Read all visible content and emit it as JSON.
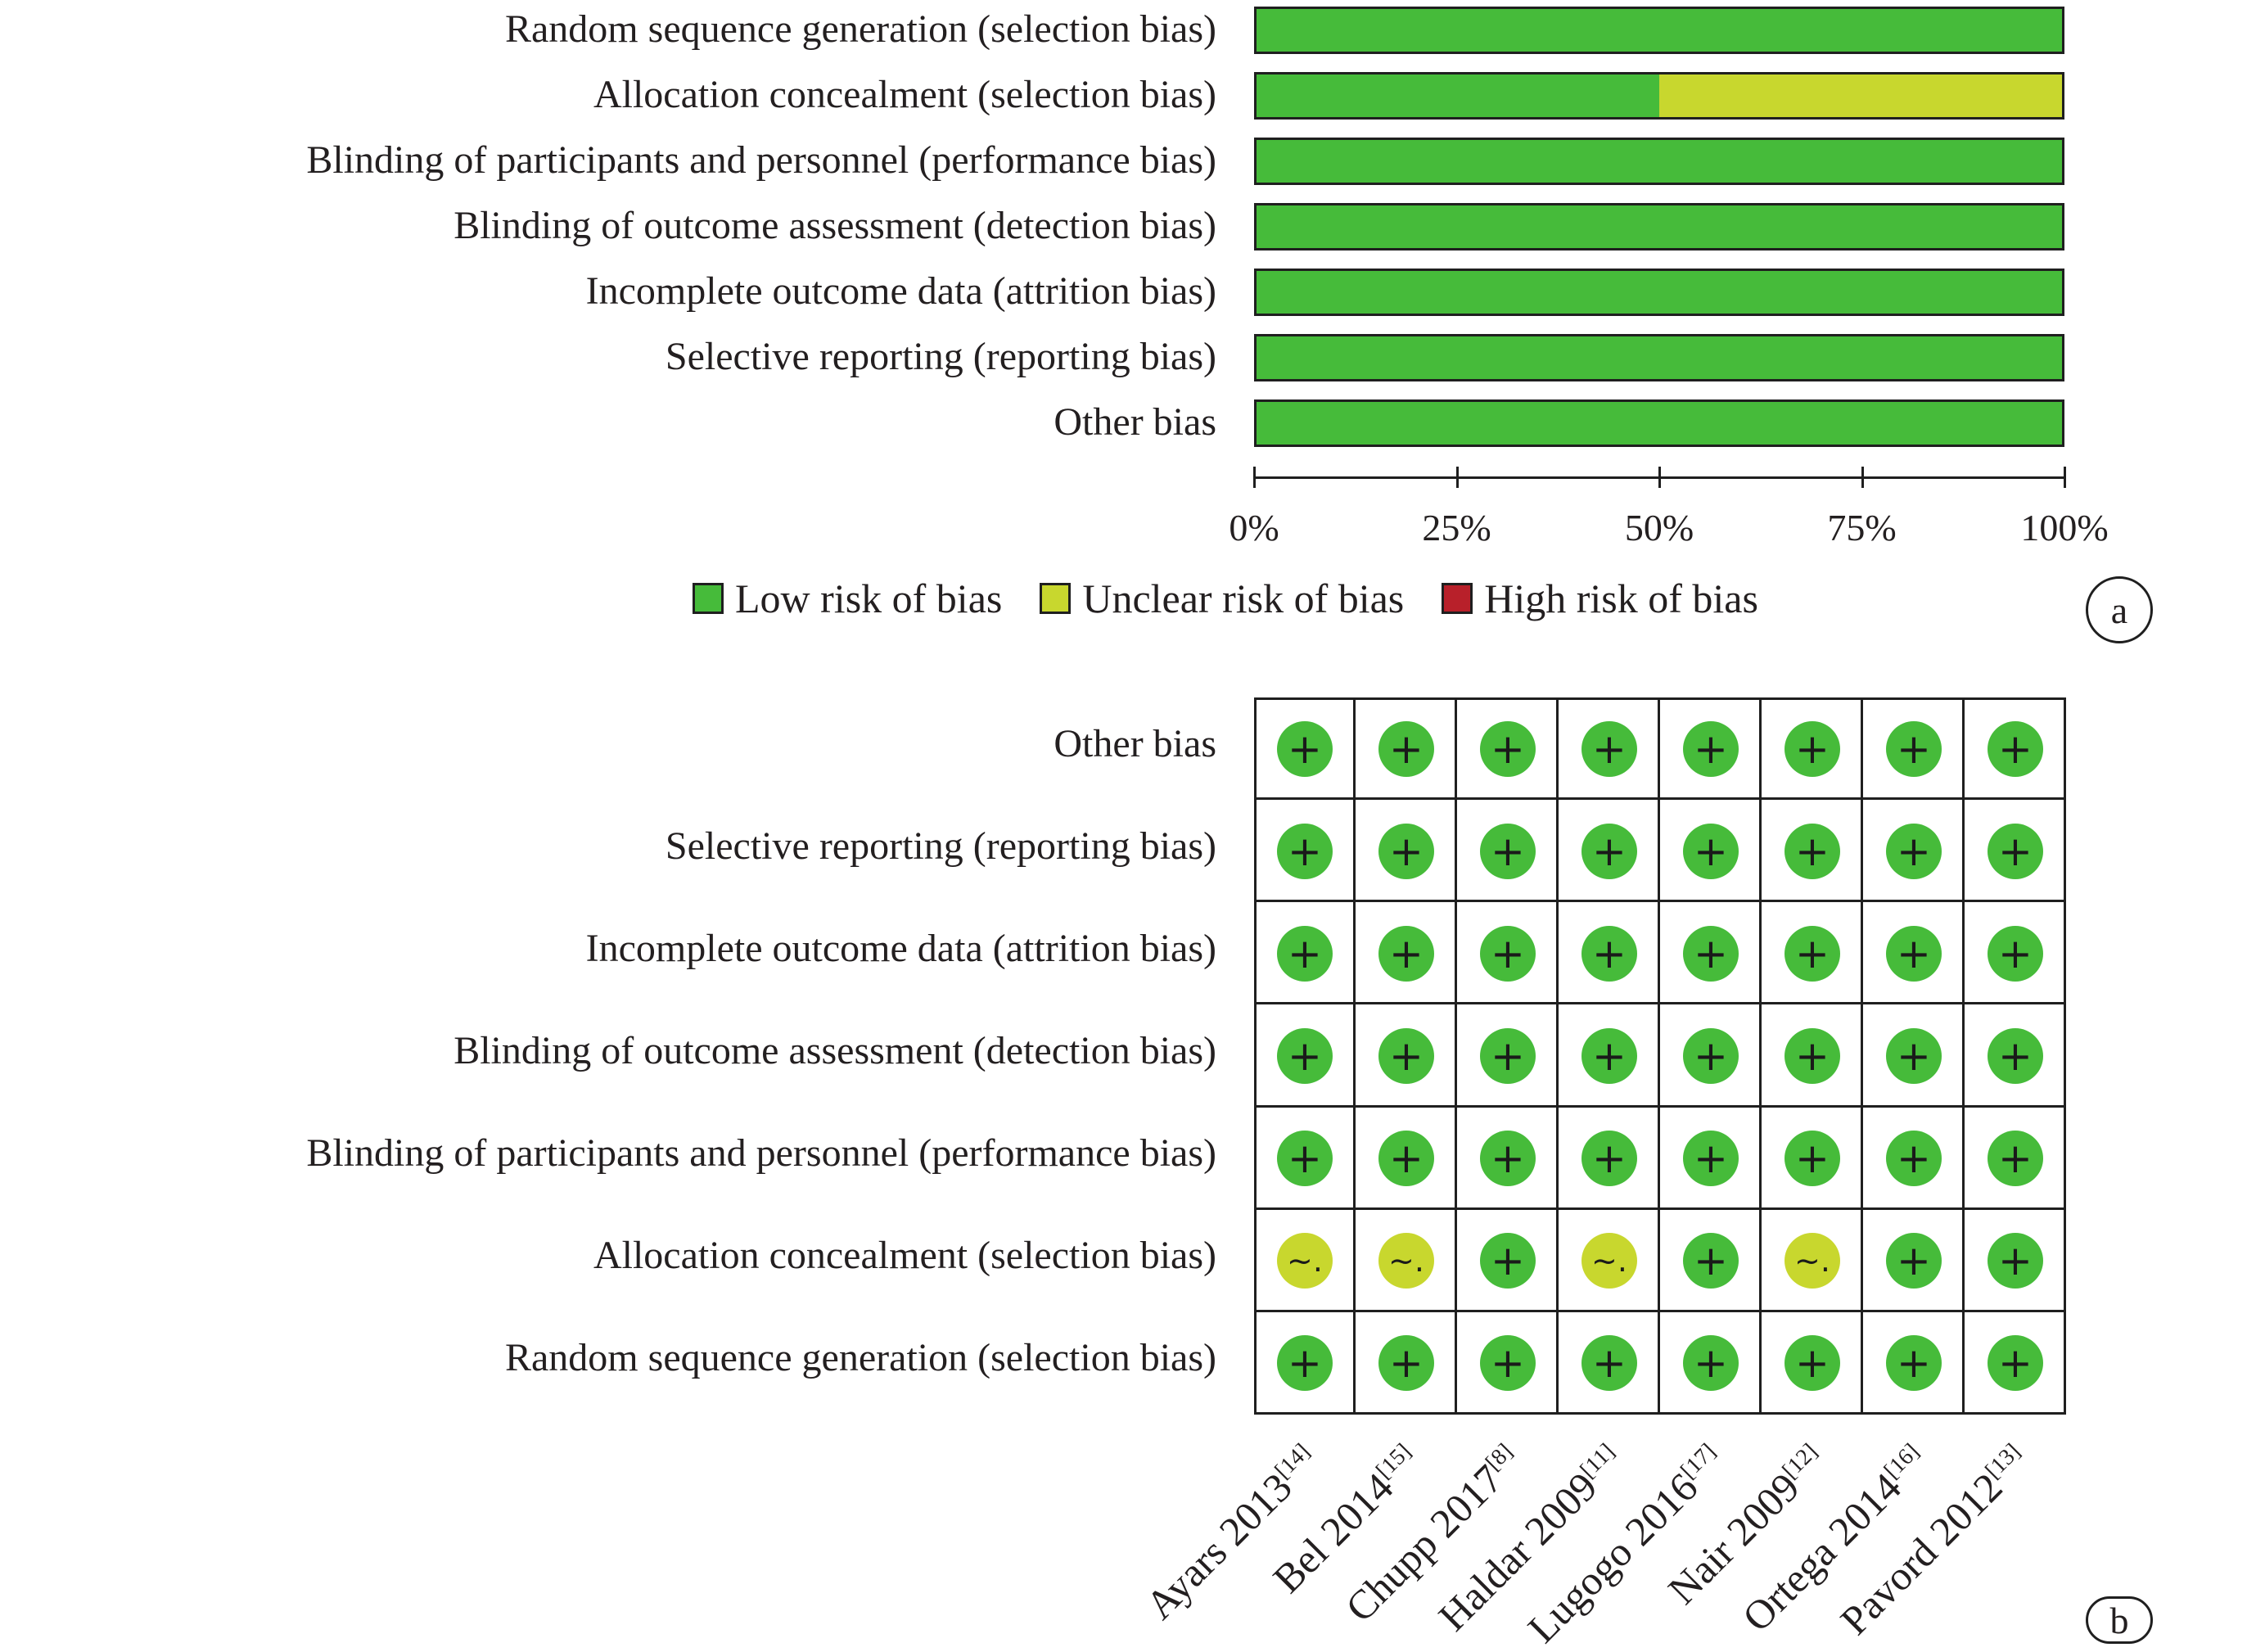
{
  "colors": {
    "low": "#46bb3a",
    "unclear": "#c8d72e",
    "high": "#b8202a"
  },
  "panel_a": {
    "tag": "a",
    "legend": [
      {
        "key": "low",
        "label": "Low risk of bias"
      },
      {
        "key": "unclear",
        "label": "Unclear risk of bias"
      },
      {
        "key": "high",
        "label": "High risk of bias"
      }
    ]
  },
  "panel_b": {
    "tag": "b",
    "symbols": {
      "low": "+",
      "unclear": "~.",
      "high": "−"
    }
  },
  "chart_data": [
    {
      "type": "bar",
      "orientation": "horizontal-stacked-percent",
      "categories": [
        "Random sequence generation (selection bias)",
        "Allocation concealment (selection bias)",
        "Blinding of participants and personnel (performance bias)",
        "Blinding of outcome assessment (detection bias)",
        "Incomplete outcome data (attrition bias)",
        "Selective reporting (reporting bias)",
        "Other bias"
      ],
      "series": [
        {
          "name": "Low risk of bias",
          "key": "low",
          "values": [
            100,
            50,
            100,
            100,
            100,
            100,
            100
          ]
        },
        {
          "name": "Unclear risk of bias",
          "key": "unclear",
          "values": [
            0,
            50,
            0,
            0,
            0,
            0,
            0
          ]
        },
        {
          "name": "High risk of bias",
          "key": "high",
          "values": [
            0,
            0,
            0,
            0,
            0,
            0,
            0
          ]
        }
      ],
      "xlim": [
        0,
        100
      ],
      "xticks": [
        "0%",
        "25%",
        "50%",
        "75%",
        "100%"
      ],
      "legend_position": "bottom"
    },
    {
      "type": "table",
      "rows": [
        "Other bias",
        "Selective reporting (reporting bias)",
        "Incomplete outcome data (attrition bias)",
        "Blinding of outcome assessment (detection bias)",
        "Blinding of participants and personnel (performance bias)",
        "Allocation concealment (selection bias)",
        "Random sequence generation (selection bias)"
      ],
      "columns": [
        {
          "study": "Ayars 2013",
          "ref": "[14]"
        },
        {
          "study": "Bel 2014",
          "ref": "[15]"
        },
        {
          "study": "Chupp 2017",
          "ref": "[8]"
        },
        {
          "study": "Haldar 2009",
          "ref": "[11]"
        },
        {
          "study": "Lugogo 2016",
          "ref": "[17]"
        },
        {
          "study": "Nair 2009",
          "ref": "[12]"
        },
        {
          "study": "Ortega 2014",
          "ref": "[16]"
        },
        {
          "study": "Pavord 2012",
          "ref": "[13]"
        }
      ],
      "values": [
        [
          "low",
          "low",
          "low",
          "low",
          "low",
          "low",
          "low",
          "low"
        ],
        [
          "low",
          "low",
          "low",
          "low",
          "low",
          "low",
          "low",
          "low"
        ],
        [
          "low",
          "low",
          "low",
          "low",
          "low",
          "low",
          "low",
          "low"
        ],
        [
          "low",
          "low",
          "low",
          "low",
          "low",
          "low",
          "low",
          "low"
        ],
        [
          "low",
          "low",
          "low",
          "low",
          "low",
          "low",
          "low",
          "low"
        ],
        [
          "unclear",
          "unclear",
          "low",
          "unclear",
          "low",
          "unclear",
          "low",
          "low"
        ],
        [
          "low",
          "low",
          "low",
          "low",
          "low",
          "low",
          "low",
          "low"
        ]
      ]
    }
  ]
}
